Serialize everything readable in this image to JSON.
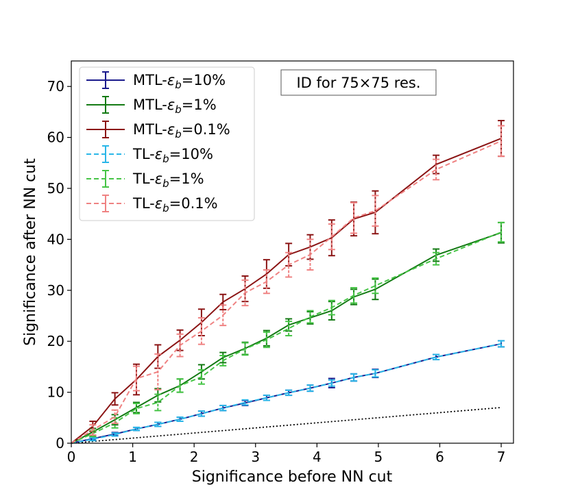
{
  "chart_data": {
    "type": "line",
    "xlabel": "Significance before NN cut",
    "ylabel": "Significance after NN cut",
    "xlim": [
      0,
      7.2
    ],
    "ylim": [
      0,
      75
    ],
    "xticks": [
      0,
      1,
      2,
      3,
      4,
      5,
      6,
      7
    ],
    "yticks": [
      0,
      10,
      20,
      30,
      40,
      50,
      60,
      70
    ],
    "grid": false,
    "legend_position": "top-left",
    "annotation": "ID for 75×75 res.",
    "reference_line": {
      "style": "dotted",
      "color": "#000000",
      "x": [
        0,
        7
      ],
      "y": [
        0,
        7
      ]
    },
    "x": [
      0,
      0.35,
      0.71,
      1.06,
      1.41,
      1.77,
      2.12,
      2.47,
      2.83,
      3.18,
      3.54,
      3.89,
      4.24,
      4.6,
      4.95,
      5.94,
      7.0
    ],
    "series": [
      {
        "name": "MTL-ε_b=10%",
        "name_main": "MTL-",
        "name_sub": "b",
        "name_tail": "=10%",
        "color": "#1a1a8c",
        "dash": "solid",
        "width": 2,
        "values": [
          0,
          0.9,
          1.8,
          2.8,
          3.7,
          4.7,
          5.8,
          6.9,
          7.9,
          8.9,
          9.9,
          10.8,
          11.8,
          12.9,
          13.7,
          16.9,
          19.5
        ],
        "errors": [
          0,
          0.3,
          0.3,
          0.3,
          0.4,
          0.4,
          0.5,
          0.5,
          0.5,
          0.5,
          0.5,
          0.6,
          0.9,
          0.7,
          0.8,
          0.5,
          0.6
        ]
      },
      {
        "name": "MTL-ε_b=1%",
        "name_main": "MTL-",
        "name_sub": "b",
        "name_tail": "=1%",
        "color": "#137a13",
        "dash": "solid",
        "width": 2,
        "values": [
          0,
          2.2,
          4.6,
          7.0,
          9.4,
          11.3,
          14.0,
          16.8,
          18.6,
          20.6,
          23.2,
          24.6,
          26.0,
          28.7,
          30.2,
          36.9,
          41.3
        ],
        "errors": [
          0,
          0.7,
          1.0,
          1.0,
          1.3,
          1.3,
          1.4,
          1.0,
          1.2,
          1.5,
          1.2,
          1.2,
          1.8,
          1.5,
          2.0,
          1.2,
          2.0
        ]
      },
      {
        "name": "MTL-ε_b=0.1%",
        "name_main": "MTL-",
        "name_sub": "b",
        "name_tail": "=0.1%",
        "color": "#8b1414",
        "dash": "solid",
        "width": 2,
        "values": [
          0,
          3.3,
          8.7,
          12.5,
          17.0,
          20.2,
          23.7,
          27.7,
          30.3,
          33.2,
          37.0,
          38.5,
          40.3,
          44.0,
          45.3,
          54.7,
          59.8
        ],
        "errors": [
          0,
          1.0,
          1.2,
          3.0,
          2.3,
          2.0,
          2.6,
          1.5,
          2.5,
          2.8,
          2.2,
          2.4,
          3.5,
          3.3,
          4.2,
          1.8,
          3.5
        ]
      },
      {
        "name": "TL-ε_b=10%",
        "name_main": "TL-",
        "name_sub": "b",
        "name_tail": "=10%",
        "color": "#29b6e8",
        "dash": "dashed",
        "width": 2,
        "values": [
          0,
          0.8,
          1.7,
          2.8,
          3.7,
          4.7,
          5.8,
          6.9,
          8.0,
          8.9,
          9.9,
          10.8,
          11.8,
          12.9,
          13.7,
          16.9,
          19.5
        ],
        "errors": [
          0,
          0.3,
          0.3,
          0.3,
          0.4,
          0.4,
          0.5,
          0.5,
          0.5,
          0.5,
          0.5,
          0.6,
          0.6,
          0.7,
          0.7,
          0.5,
          0.6
        ]
      },
      {
        "name": "TL-ε_b=1%",
        "name_main": "TL-",
        "name_sub": "b",
        "name_tail": "=1%",
        "color": "#45c445",
        "dash": "dashed",
        "width": 2,
        "values": [
          0,
          1.9,
          4.0,
          6.8,
          8.0,
          11.3,
          13.0,
          16.2,
          18.5,
          20.3,
          22.5,
          24.8,
          26.6,
          29.0,
          30.9,
          36.2,
          41.4
        ],
        "errors": [
          0,
          0.6,
          1.0,
          1.0,
          1.6,
          1.3,
          1.4,
          1.0,
          1.2,
          1.5,
          1.4,
          1.2,
          1.4,
          1.5,
          1.5,
          1.2,
          1.9
        ]
      },
      {
        "name": "TL-ε_b=0.1%",
        "name_main": "TL-",
        "name_sub": "b",
        "name_tail": "=0.1%",
        "color": "#ef8282",
        "dash": "dashed",
        "width": 2,
        "values": [
          0,
          2.6,
          5.2,
          12.7,
          14.0,
          19.2,
          22.0,
          25.1,
          29.5,
          31.7,
          35.0,
          37.0,
          40.5,
          44.2,
          45.6,
          53.7,
          59.3
        ],
        "errors": [
          0,
          1.0,
          1.3,
          2.4,
          3.5,
          2.2,
          2.6,
          2.0,
          2.5,
          2.3,
          2.4,
          3.0,
          2.5,
          3.0,
          3.0,
          2.0,
          3.0
        ]
      }
    ]
  }
}
